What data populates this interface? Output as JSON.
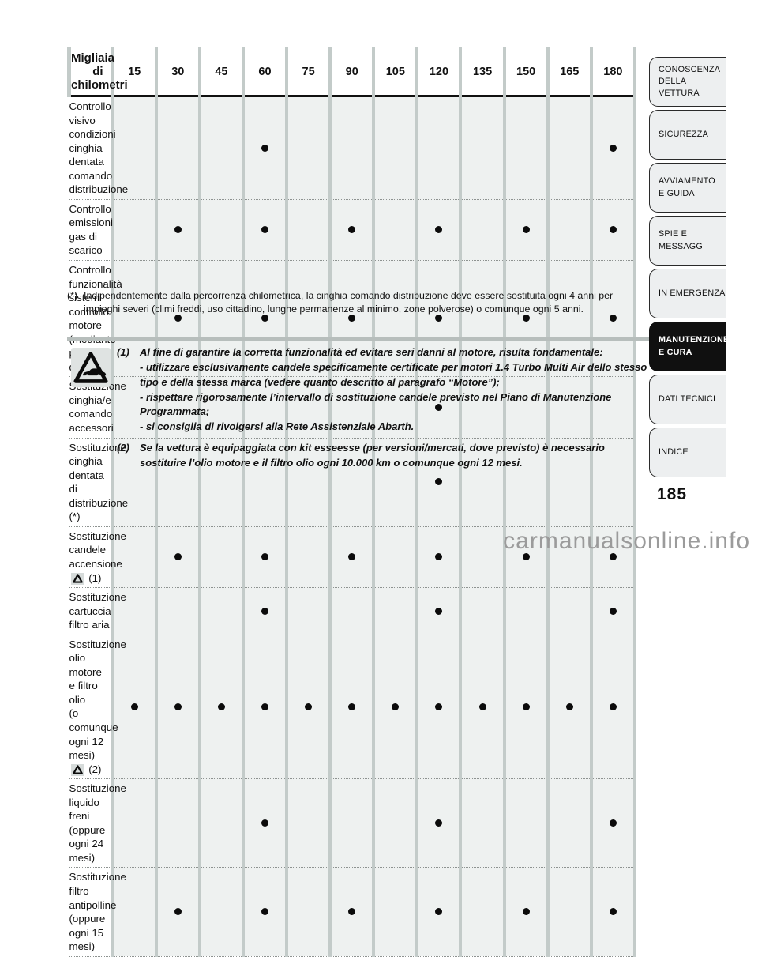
{
  "colors": {
    "table_cell_bg": "#eef1f0",
    "column_stripe": "#c3cbc9",
    "separator_bar": "#b7bebc",
    "tab_bg": "#edeff0",
    "tab_active_bg": "#101010",
    "tab_active_text": "#ffffff",
    "text": "#111111",
    "watermark": "#9b9b9b"
  },
  "table": {
    "header_label": "Migliaia di chilometri",
    "columns": [
      "15",
      "30",
      "45",
      "60",
      "75",
      "90",
      "105",
      "120",
      "135",
      "150",
      "165",
      "180"
    ],
    "rows": [
      {
        "lines": [
          "Controllo visivo condizioni cinghia dentata comando",
          "distribuzione"
        ],
        "symbol": null,
        "ref": null,
        "dots": [
          "60",
          "180"
        ]
      },
      {
        "lines": [
          "Controllo emissioni gas di scarico"
        ],
        "symbol": null,
        "ref": null,
        "dots": [
          "30",
          "60",
          "90",
          "120",
          "150",
          "180"
        ]
      },
      {
        "lines": [
          "Controllo funzionalità sistemi controllo motore",
          "(mediante presa diagnosi)"
        ],
        "symbol": null,
        "ref": null,
        "dots": [
          "30",
          "60",
          "90",
          "120",
          "150",
          "180"
        ]
      },
      {
        "lines": [
          "Sostituzione cinghia/e comando accessori"
        ],
        "symbol": null,
        "ref": null,
        "dots": [
          "120"
        ]
      },
      {
        "lines": [
          "Sostituzione cinghia dentata di distribuzione (*)"
        ],
        "symbol": null,
        "ref": null,
        "dots": [
          "120"
        ]
      },
      {
        "lines": [
          "Sostituzione candele accensione"
        ],
        "symbol": "warning-triangle",
        "ref": "(1)",
        "dots": [
          "30",
          "60",
          "90",
          "120",
          "150",
          "180"
        ]
      },
      {
        "lines": [
          "Sostituzione cartuccia filtro aria"
        ],
        "symbol": null,
        "ref": null,
        "dots": [
          "60",
          "120",
          "180"
        ]
      },
      {
        "lines": [
          "Sostituzione olio motore e filtro olio",
          "(o comunque ogni 12 mesi)"
        ],
        "symbol": "warning-triangle",
        "ref": "(2)",
        "dots": [
          "15",
          "30",
          "45",
          "60",
          "75",
          "90",
          "105",
          "120",
          "135",
          "150",
          "165",
          "180"
        ]
      },
      {
        "lines": [
          "Sostituzione liquido freni (oppure ogni 24 mesi)"
        ],
        "symbol": null,
        "ref": null,
        "dots": [
          "60",
          "120",
          "180"
        ]
      },
      {
        "lines": [
          "Sostituzione filtro antipolline (oppure ogni 15 mesi)"
        ],
        "symbol": null,
        "ref": null,
        "dots": [
          "30",
          "60",
          "90",
          "120",
          "150",
          "180"
        ]
      }
    ]
  },
  "footnote": {
    "marker": "(*)",
    "text": "Indipendentemente dalla percorrenza chilometrica, la cinghia comando distribuzione deve essere sostituita ogni 4 anni per impieghi severi (climi freddi, uso cittadino, lunghe permanenze al minimo, zone polverose) o comunque ogni 5 anni."
  },
  "notes": [
    {
      "marker": "(1)",
      "paragraphs": [
        "Al fine di garantire la corretta funzionalità ed evitare seri danni al motore, risulta fondamentale:",
        "- utilizzare esclusivamente candele specificamente certificate per motori 1.4 Turbo Multi Air dello stesso tipo e della stessa marca (vedere quanto descritto al paragrafo “Motore”);",
        "- rispettare rigorosamente l’intervallo di sostituzione candele previsto nel Piano di Manutenzione Programmata;",
        "- si consiglia di rivolgersi alla Rete Assistenziale Abarth."
      ]
    },
    {
      "marker": "(2)",
      "paragraphs": [
        "Se la vettura è equipaggiata con kit esseesse (per versioni/mercati, dove previsto) è necessario sostituire l’olio motore e il filtro olio ogni 10.000 km o comunque ogni 12 mesi."
      ]
    }
  ],
  "sidebar": {
    "items": [
      {
        "id": "conoscenza-della-vettura",
        "label": "CONOSCENZA\nDELLA\nVETTURA",
        "active": false
      },
      {
        "id": "sicurezza",
        "label": "SICUREZZA",
        "active": false
      },
      {
        "id": "avviamento-e-guida",
        "label": "AVVIAMENTO\nE GUIDA",
        "active": false
      },
      {
        "id": "spie-e-messaggi",
        "label": "SPIE E\nMESSAGGI",
        "active": false
      },
      {
        "id": "in-emergenza",
        "label": "IN EMERGENZA",
        "active": false
      },
      {
        "id": "manutenzione-e-cura",
        "label": "MANUTENZIONE\nE CURA",
        "active": true
      },
      {
        "id": "dati-tecnici",
        "label": "DATI TECNICI",
        "active": false
      },
      {
        "id": "indice",
        "label": "INDICE",
        "active": false
      }
    ]
  },
  "page": {
    "number": "185",
    "watermark": "carmanualsonline.info"
  }
}
